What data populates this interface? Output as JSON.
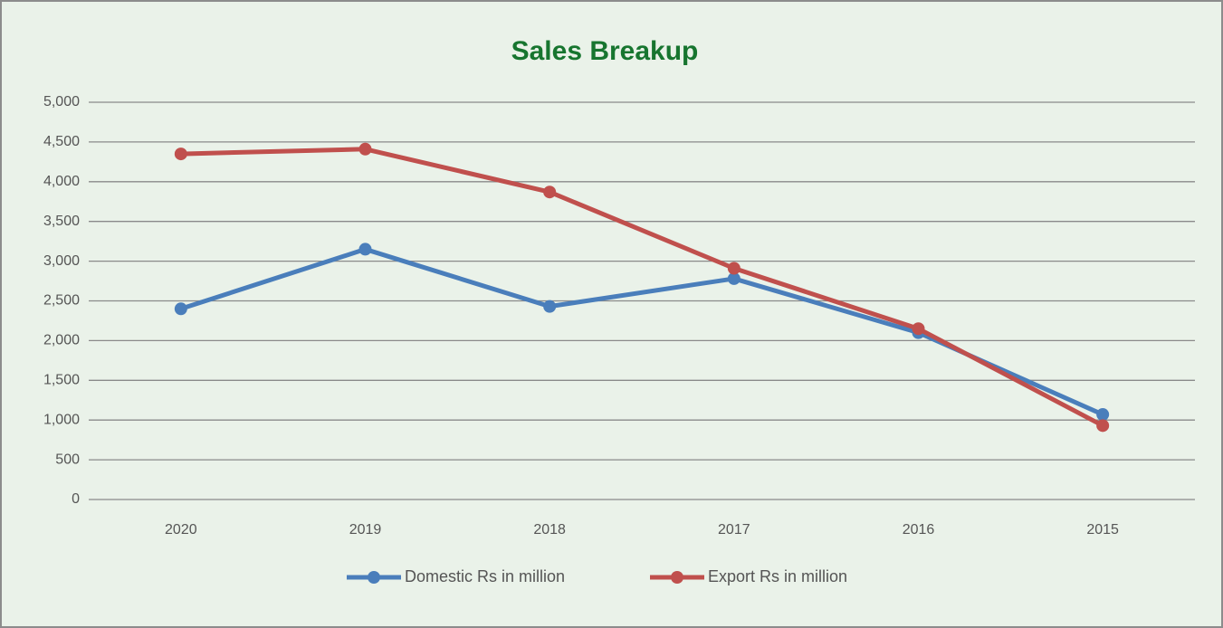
{
  "chart_data": {
    "type": "line",
    "title": "Sales Breakup",
    "categories": [
      "2020",
      "2019",
      "2018",
      "2017",
      "2016",
      "2015"
    ],
    "series": [
      {
        "name": "Domestic Rs in million",
        "color": "#4a7ebb",
        "values": [
          2400,
          3150,
          2430,
          2780,
          2100,
          1070
        ]
      },
      {
        "name": "Export Rs in million",
        "color": "#c0504d",
        "values": [
          4350,
          4410,
          3870,
          2910,
          2150,
          930
        ]
      }
    ],
    "ylim": [
      0,
      5000
    ],
    "yticks": [
      0,
      500,
      {
        "value": 1000,
        "label": "1,000"
      },
      {
        "value": 1500,
        "label": "1,500"
      },
      {
        "value": 2000,
        "label": "2,000"
      },
      {
        "value": 2500,
        "label": "2,500"
      },
      {
        "value": 3000,
        "label": "3,000"
      },
      {
        "value": 3500,
        "label": "3,500"
      },
      {
        "value": 4000,
        "label": "4,000"
      },
      {
        "value": 4500,
        "label": "4,500"
      },
      {
        "value": 5000,
        "label": "5,000"
      }
    ],
    "grid": true,
    "legend": "bottom"
  }
}
